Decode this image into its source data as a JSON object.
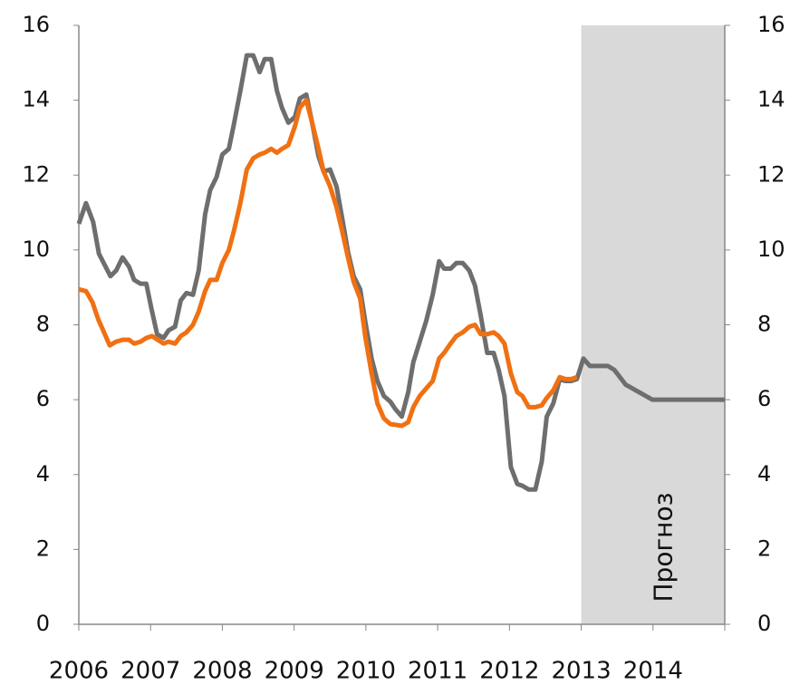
{
  "chart_data": {
    "type": "line",
    "xlim": [
      2006,
      2015
    ],
    "xticks": [
      2006,
      2007,
      2008,
      2009,
      2010,
      2011,
      2012,
      2013,
      2014
    ],
    "ylim": [
      0,
      16
    ],
    "yticks": [
      0,
      2,
      4,
      6,
      8,
      10,
      12,
      14,
      16
    ],
    "y2lim": [
      0,
      16
    ],
    "y2ticks": [
      0,
      2,
      4,
      6,
      8,
      10,
      12,
      14,
      16
    ],
    "shade": {
      "from": 2013,
      "to": 2015,
      "label": "Прогноз",
      "color": "#d9d9d9"
    },
    "series": [
      {
        "color": "#6e6e6e",
        "x": [
          2006.0,
          2006.1,
          2006.2,
          2006.28,
          2006.44,
          2006.52,
          2006.61,
          2006.7,
          2006.77,
          2006.86,
          2006.94,
          2007.01,
          2007.09,
          2007.18,
          2007.25,
          2007.34,
          2007.42,
          2007.5,
          2007.59,
          2007.67,
          2007.76,
          2007.83,
          2007.92,
          2008.0,
          2008.09,
          2008.16,
          2008.25,
          2008.34,
          2008.43,
          2008.52,
          2008.59,
          2008.68,
          2008.76,
          2008.83,
          2008.92,
          2009.01,
          2009.08,
          2009.17,
          2009.25,
          2009.34,
          2009.41,
          2009.5,
          2009.59,
          2009.67,
          2009.75,
          2009.83,
          2009.92,
          2009.99,
          2010.08,
          2010.16,
          2010.25,
          2010.34,
          2010.41,
          2010.5,
          2010.59,
          2010.66,
          2010.75,
          2010.84,
          2010.93,
          2011.02,
          2011.09,
          2011.18,
          2011.26,
          2011.35,
          2011.44,
          2011.52,
          2011.6,
          2011.69,
          2011.78,
          2011.85,
          2011.93,
          2012.02,
          2012.11,
          2012.18,
          2012.27,
          2012.36,
          2012.45,
          2012.52,
          2012.61,
          2012.7,
          2012.78,
          2012.86,
          2012.94,
          2013.03,
          2013.12,
          2013.37,
          2013.46,
          2013.62,
          2013.99,
          2015.0
        ],
        "values": [
          10.7,
          11.25,
          10.75,
          9.9,
          9.3,
          9.45,
          9.8,
          9.55,
          9.2,
          9.1,
          9.1,
          8.45,
          7.75,
          7.65,
          7.85,
          7.95,
          8.65,
          8.85,
          8.8,
          9.45,
          10.95,
          11.6,
          11.95,
          12.55,
          12.7,
          13.35,
          14.25,
          15.2,
          15.2,
          14.75,
          15.1,
          15.1,
          14.25,
          13.8,
          13.4,
          13.55,
          14.05,
          14.15,
          13.4,
          12.5,
          12.1,
          12.15,
          11.7,
          10.85,
          9.95,
          9.3,
          8.95,
          8.1,
          7.1,
          6.5,
          6.1,
          5.95,
          5.75,
          5.55,
          6.2,
          7.0,
          7.55,
          8.1,
          8.8,
          9.7,
          9.5,
          9.5,
          9.65,
          9.65,
          9.45,
          9.05,
          8.25,
          7.25,
          7.25,
          6.8,
          6.1,
          4.2,
          3.75,
          3.7,
          3.6,
          3.6,
          4.35,
          5.55,
          5.9,
          6.55,
          6.5,
          6.5,
          6.55,
          7.1,
          6.9,
          6.9,
          6.8,
          6.4,
          6.0,
          6.0
        ]
      },
      {
        "color": "#f07012",
        "x": [
          2006.0,
          2006.1,
          2006.19,
          2006.27,
          2006.34,
          2006.43,
          2006.52,
          2006.61,
          2006.7,
          2006.77,
          2006.86,
          2006.94,
          2007.02,
          2007.1,
          2007.18,
          2007.25,
          2007.34,
          2007.42,
          2007.5,
          2007.59,
          2007.67,
          2007.76,
          2007.83,
          2007.92,
          2008.0,
          2008.09,
          2008.16,
          2008.25,
          2008.34,
          2008.43,
          2008.52,
          2008.59,
          2008.68,
          2008.76,
          2008.83,
          2008.92,
          2009.01,
          2009.08,
          2009.17,
          2009.25,
          2009.34,
          2009.41,
          2009.5,
          2009.59,
          2009.67,
          2009.75,
          2009.83,
          2009.92,
          2009.99,
          2010.08,
          2010.16,
          2010.25,
          2010.34,
          2010.41,
          2010.5,
          2010.59,
          2010.66,
          2010.75,
          2010.84,
          2010.93,
          2011.02,
          2011.09,
          2011.18,
          2011.26,
          2011.35,
          2011.44,
          2011.52,
          2011.6,
          2011.69,
          2011.78,
          2011.85,
          2011.93,
          2012.02,
          2012.11,
          2012.18,
          2012.27,
          2012.36,
          2012.45,
          2012.52,
          2012.61,
          2012.7,
          2012.78,
          2012.86,
          2012.94
        ],
        "values": [
          8.95,
          8.9,
          8.6,
          8.15,
          7.85,
          7.45,
          7.55,
          7.6,
          7.6,
          7.5,
          7.55,
          7.65,
          7.7,
          7.6,
          7.5,
          7.55,
          7.5,
          7.7,
          7.8,
          8.0,
          8.35,
          8.9,
          9.2,
          9.2,
          9.65,
          10.0,
          10.5,
          11.25,
          12.15,
          12.45,
          12.55,
          12.6,
          12.7,
          12.6,
          12.7,
          12.8,
          13.3,
          13.8,
          14.0,
          13.4,
          12.7,
          12.1,
          11.7,
          11.15,
          10.5,
          9.8,
          9.15,
          8.7,
          7.7,
          6.7,
          5.9,
          5.5,
          5.35,
          5.33,
          5.3,
          5.4,
          5.8,
          6.1,
          6.3,
          6.5,
          7.1,
          7.25,
          7.5,
          7.7,
          7.8,
          7.95,
          8.0,
          7.75,
          7.75,
          7.8,
          7.7,
          7.5,
          6.7,
          6.2,
          6.1,
          5.8,
          5.8,
          5.85,
          6.05,
          6.25,
          6.6,
          6.55,
          6.55,
          6.6
        ]
      }
    ]
  }
}
